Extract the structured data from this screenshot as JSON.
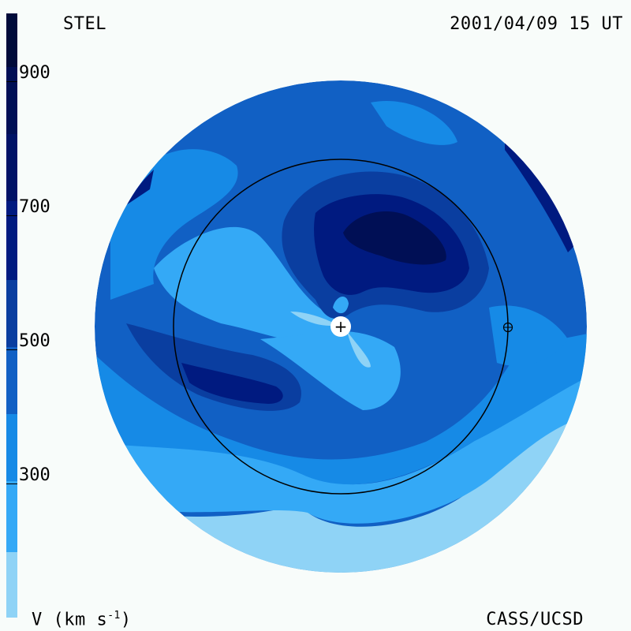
{
  "header": {
    "source": "STEL",
    "datetime": "2001/04/09 15 UT"
  },
  "footer": {
    "units_label": "V (km s",
    "units_sup": "-1",
    "units_close": ")",
    "credit": "CASS/UCSD"
  },
  "colorbar": {
    "ticks": [
      "900",
      "700",
      "500",
      "300"
    ],
    "colors": [
      "#000b3a",
      "#001266",
      "#00218e",
      "#0a47a8",
      "#1160c4",
      "#168ae6",
      "#34a9f6",
      "#8fd3f6"
    ]
  },
  "map": {
    "sun_symbol": "+",
    "earth_symbol": "⊕"
  }
}
